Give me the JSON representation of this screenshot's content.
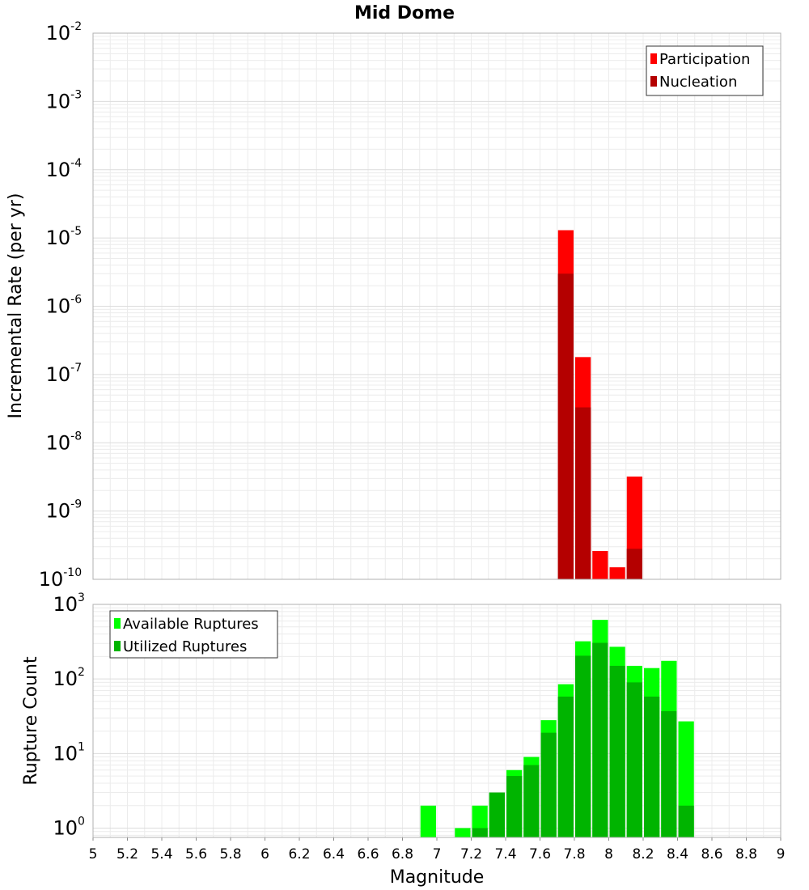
{
  "chart_data": [
    {
      "type": "bar",
      "title": "Mid Dome",
      "xlabel": "",
      "ylabel": "Incremental Rate (per yr)",
      "y_scale": "log",
      "xlim": [
        5,
        9
      ],
      "ylim": [
        1e-10,
        0.01
      ],
      "y_ticks": [
        {
          "base": "10",
          "exp": "-10"
        },
        {
          "base": "10",
          "exp": "-9"
        },
        {
          "base": "10",
          "exp": "-8"
        },
        {
          "base": "10",
          "exp": "-7"
        },
        {
          "base": "10",
          "exp": "-6"
        },
        {
          "base": "10",
          "exp": "-5"
        },
        {
          "base": "10",
          "exp": "-4"
        },
        {
          "base": "10",
          "exp": "-3"
        },
        {
          "base": "10",
          "exp": "-2"
        }
      ],
      "bar_width": 0.1,
      "legend_position": "top-right",
      "series": [
        {
          "name": "Participation",
          "color": "#ff0000",
          "points": [
            {
              "x": 7.75,
              "y": 1.3e-05
            },
            {
              "x": 7.85,
              "y": 1.8e-07
            },
            {
              "x": 7.95,
              "y": 2.6e-10
            },
            {
              "x": 8.05,
              "y": 1.5e-10
            },
            {
              "x": 8.15,
              "y": 3.2e-09
            }
          ]
        },
        {
          "name": "Nucleation",
          "color": "#b40000",
          "points": [
            {
              "x": 7.75,
              "y": 3e-06
            },
            {
              "x": 7.85,
              "y": 3.3e-08
            },
            {
              "x": 8.15,
              "y": 2.8e-10
            }
          ]
        }
      ]
    },
    {
      "type": "bar",
      "title": "",
      "xlabel": "Magnitude",
      "ylabel": "Rupture Count",
      "y_scale": "log",
      "xlim": [
        5,
        9
      ],
      "ylim": [
        0.75,
        1000
      ],
      "x_ticks": [
        "5",
        "5.2",
        "5.4",
        "5.6",
        "5.8",
        "6",
        "6.2",
        "6.4",
        "6.6",
        "6.8",
        "7",
        "7.2",
        "7.4",
        "7.6",
        "7.8",
        "8",
        "8.2",
        "8.4",
        "8.6",
        "8.8",
        "9"
      ],
      "y_ticks": [
        {
          "base": "10",
          "exp": "0"
        },
        {
          "base": "10",
          "exp": "1"
        },
        {
          "base": "10",
          "exp": "2"
        },
        {
          "base": "10",
          "exp": "3"
        }
      ],
      "bar_width": 0.1,
      "legend_position": "top-left",
      "series": [
        {
          "name": "Available Ruptures",
          "color": "#00ff00",
          "points": [
            {
              "x": 6.95,
              "y": 2
            },
            {
              "x": 7.15,
              "y": 1
            },
            {
              "x": 7.25,
              "y": 2
            },
            {
              "x": 7.35,
              "y": 3
            },
            {
              "x": 7.45,
              "y": 6
            },
            {
              "x": 7.55,
              "y": 9
            },
            {
              "x": 7.65,
              "y": 28
            },
            {
              "x": 7.75,
              "y": 85
            },
            {
              "x": 7.85,
              "y": 320
            },
            {
              "x": 7.95,
              "y": 620
            },
            {
              "x": 8.05,
              "y": 270
            },
            {
              "x": 8.15,
              "y": 150
            },
            {
              "x": 8.25,
              "y": 140
            },
            {
              "x": 8.35,
              "y": 175
            },
            {
              "x": 8.45,
              "y": 27
            }
          ]
        },
        {
          "name": "Utilized Ruptures",
          "color": "#00b400",
          "points": [
            {
              "x": 7.25,
              "y": 1
            },
            {
              "x": 7.35,
              "y": 3
            },
            {
              "x": 7.45,
              "y": 5
            },
            {
              "x": 7.55,
              "y": 7
            },
            {
              "x": 7.65,
              "y": 19
            },
            {
              "x": 7.75,
              "y": 58
            },
            {
              "x": 7.85,
              "y": 205
            },
            {
              "x": 7.95,
              "y": 305
            },
            {
              "x": 8.05,
              "y": 150
            },
            {
              "x": 8.15,
              "y": 90
            },
            {
              "x": 8.25,
              "y": 58
            },
            {
              "x": 8.35,
              "y": 37
            },
            {
              "x": 8.45,
              "y": 2
            }
          ]
        }
      ]
    }
  ]
}
